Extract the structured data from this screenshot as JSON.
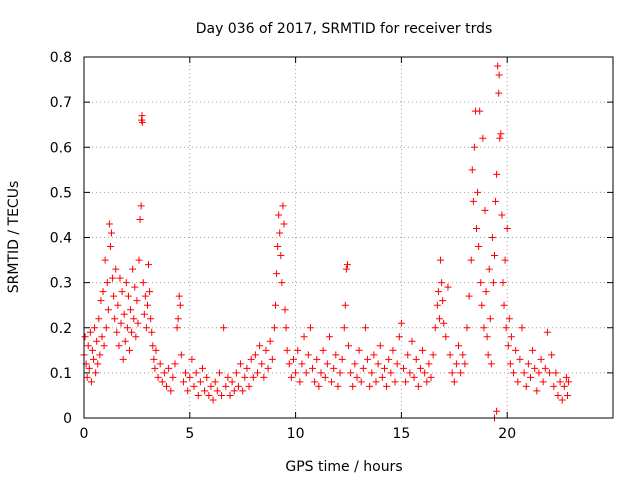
{
  "chart_data": {
    "type": "scatter",
    "title": "Day 036 of 2017, SRMTID for receiver trds",
    "xlabel": "GPS time / hours",
    "ylabel": "SRMTID / TECUs",
    "xlim": [
      0,
      25
    ],
    "ylim": [
      0,
      0.8
    ],
    "xticks": [
      0,
      5,
      10,
      15,
      20
    ],
    "xtick_labels": [
      "0",
      "5",
      "10",
      "15",
      "20"
    ],
    "yticks": [
      0,
      0.1,
      0.2,
      0.3,
      0.4,
      0.5,
      0.6,
      0.7,
      0.8
    ],
    "ytick_labels": [
      "0",
      "0.1",
      "0.2",
      "0.3",
      "0.4",
      "0.5",
      "0.6",
      "0.7",
      "0.8"
    ],
    "grid": true,
    "marker": "+",
    "color": "#ff0000",
    "x_extent_hours": [
      0,
      22.9
    ],
    "series": [
      {
        "name": "trds",
        "points": [
          [
            0.0,
            0.14
          ],
          [
            0.05,
            0.18
          ],
          [
            0.1,
            0.12
          ],
          [
            0.15,
            0.09
          ],
          [
            0.2,
            0.16
          ],
          [
            0.25,
            0.11
          ],
          [
            0.3,
            0.19
          ],
          [
            0.35,
            0.08
          ],
          [
            0.4,
            0.15
          ],
          [
            0.45,
            0.13
          ],
          [
            0.5,
            0.2
          ],
          [
            0.55,
            0.1
          ],
          [
            0.6,
            0.17
          ],
          [
            0.65,
            0.12
          ],
          [
            0.7,
            0.22
          ],
          [
            0.75,
            0.14
          ],
          [
            0.8,
            0.26
          ],
          [
            0.85,
            0.18
          ],
          [
            0.9,
            0.28
          ],
          [
            0.95,
            0.16
          ],
          [
            1.0,
            0.35
          ],
          [
            1.05,
            0.2
          ],
          [
            1.1,
            0.3
          ],
          [
            1.15,
            0.24
          ],
          [
            1.2,
            0.43
          ],
          [
            1.25,
            0.38
          ],
          [
            1.3,
            0.41
          ],
          [
            1.35,
            0.31
          ],
          [
            1.4,
            0.27
          ],
          [
            1.45,
            0.22
          ],
          [
            1.5,
            0.33
          ],
          [
            1.55,
            0.19
          ],
          [
            1.6,
            0.25
          ],
          [
            1.65,
            0.16
          ],
          [
            1.7,
            0.31
          ],
          [
            1.75,
            0.21
          ],
          [
            1.8,
            0.28
          ],
          [
            1.85,
            0.13
          ],
          [
            1.9,
            0.23
          ],
          [
            1.95,
            0.17
          ],
          [
            2.0,
            0.3
          ],
          [
            2.05,
            0.2
          ],
          [
            2.1,
            0.27
          ],
          [
            2.15,
            0.15
          ],
          [
            2.2,
            0.24
          ],
          [
            2.25,
            0.19
          ],
          [
            2.3,
            0.33
          ],
          [
            2.35,
            0.22
          ],
          [
            2.4,
            0.29
          ],
          [
            2.45,
            0.18
          ],
          [
            2.5,
            0.26
          ],
          [
            2.55,
            0.21
          ],
          [
            2.6,
            0.35
          ],
          [
            2.65,
            0.44
          ],
          [
            2.7,
            0.47
          ],
          [
            2.72,
            0.66
          ],
          [
            2.74,
            0.67
          ],
          [
            2.76,
            0.655
          ],
          [
            2.8,
            0.3
          ],
          [
            2.85,
            0.23
          ],
          [
            2.9,
            0.27
          ],
          [
            2.95,
            0.2
          ],
          [
            3.0,
            0.25
          ],
          [
            3.05,
            0.34
          ],
          [
            3.1,
            0.28
          ],
          [
            3.15,
            0.22
          ],
          [
            3.2,
            0.19
          ],
          [
            3.25,
            0.16
          ],
          [
            3.3,
            0.13
          ],
          [
            3.35,
            0.11
          ],
          [
            3.4,
            0.15
          ],
          [
            3.5,
            0.09
          ],
          [
            3.6,
            0.12
          ],
          [
            3.7,
            0.08
          ],
          [
            3.8,
            0.1
          ],
          [
            3.9,
            0.07
          ],
          [
            4.0,
            0.11
          ],
          [
            4.1,
            0.06
          ],
          [
            4.2,
            0.09
          ],
          [
            4.3,
            0.12
          ],
          [
            4.4,
            0.2
          ],
          [
            4.45,
            0.22
          ],
          [
            4.5,
            0.27
          ],
          [
            4.55,
            0.25
          ],
          [
            4.6,
            0.14
          ],
          [
            4.7,
            0.08
          ],
          [
            4.8,
            0.1
          ],
          [
            4.9,
            0.06
          ],
          [
            5.0,
            0.09
          ],
          [
            5.1,
            0.13
          ],
          [
            5.2,
            0.07
          ],
          [
            5.3,
            0.1
          ],
          [
            5.4,
            0.05
          ],
          [
            5.5,
            0.08
          ],
          [
            5.6,
            0.11
          ],
          [
            5.7,
            0.06
          ],
          [
            5.8,
            0.09
          ],
          [
            5.9,
            0.05
          ],
          [
            6.0,
            0.07
          ],
          [
            6.1,
            0.04
          ],
          [
            6.2,
            0.08
          ],
          [
            6.3,
            0.06
          ],
          [
            6.4,
            0.1
          ],
          [
            6.5,
            0.05
          ],
          [
            6.6,
            0.2
          ],
          [
            6.7,
            0.07
          ],
          [
            6.8,
            0.09
          ],
          [
            6.9,
            0.05
          ],
          [
            7.0,
            0.08
          ],
          [
            7.1,
            0.06
          ],
          [
            7.2,
            0.1
          ],
          [
            7.3,
            0.07
          ],
          [
            7.4,
            0.12
          ],
          [
            7.5,
            0.06
          ],
          [
            7.6,
            0.09
          ],
          [
            7.7,
            0.11
          ],
          [
            7.8,
            0.07
          ],
          [
            7.9,
            0.13
          ],
          [
            8.0,
            0.09
          ],
          [
            8.1,
            0.14
          ],
          [
            8.2,
            0.1
          ],
          [
            8.3,
            0.16
          ],
          [
            8.4,
            0.12
          ],
          [
            8.5,
            0.09
          ],
          [
            8.6,
            0.15
          ],
          [
            8.7,
            0.11
          ],
          [
            8.8,
            0.17
          ],
          [
            8.9,
            0.13
          ],
          [
            9.0,
            0.2
          ],
          [
            9.05,
            0.25
          ],
          [
            9.1,
            0.32
          ],
          [
            9.15,
            0.38
          ],
          [
            9.2,
            0.45
          ],
          [
            9.25,
            0.41
          ],
          [
            9.3,
            0.36
          ],
          [
            9.35,
            0.3
          ],
          [
            9.4,
            0.47
          ],
          [
            9.45,
            0.43
          ],
          [
            9.5,
            0.24
          ],
          [
            9.55,
            0.2
          ],
          [
            9.6,
            0.15
          ],
          [
            9.7,
            0.12
          ],
          [
            9.8,
            0.09
          ],
          [
            9.9,
            0.13
          ],
          [
            10.0,
            0.1
          ],
          [
            10.1,
            0.15
          ],
          [
            10.2,
            0.08
          ],
          [
            10.3,
            0.12
          ],
          [
            10.4,
            0.18
          ],
          [
            10.5,
            0.1
          ],
          [
            10.6,
            0.14
          ],
          [
            10.7,
            0.2
          ],
          [
            10.8,
            0.11
          ],
          [
            10.9,
            0.08
          ],
          [
            11.0,
            0.13
          ],
          [
            11.1,
            0.07
          ],
          [
            11.2,
            0.1
          ],
          [
            11.3,
            0.15
          ],
          [
            11.4,
            0.09
          ],
          [
            11.5,
            0.12
          ],
          [
            11.6,
            0.18
          ],
          [
            11.7,
            0.08
          ],
          [
            11.8,
            0.11
          ],
          [
            11.9,
            0.14
          ],
          [
            12.0,
            0.07
          ],
          [
            12.1,
            0.1
          ],
          [
            12.2,
            0.13
          ],
          [
            12.3,
            0.2
          ],
          [
            12.35,
            0.25
          ],
          [
            12.4,
            0.33
          ],
          [
            12.45,
            0.34
          ],
          [
            12.5,
            0.16
          ],
          [
            12.6,
            0.1
          ],
          [
            12.7,
            0.07
          ],
          [
            12.8,
            0.12
          ],
          [
            12.9,
            0.09
          ],
          [
            13.0,
            0.15
          ],
          [
            13.1,
            0.08
          ],
          [
            13.2,
            0.11
          ],
          [
            13.3,
            0.2
          ],
          [
            13.4,
            0.13
          ],
          [
            13.5,
            0.07
          ],
          [
            13.6,
            0.1
          ],
          [
            13.7,
            0.14
          ],
          [
            13.8,
            0.08
          ],
          [
            13.9,
            0.12
          ],
          [
            14.0,
            0.16
          ],
          [
            14.1,
            0.09
          ],
          [
            14.2,
            0.11
          ],
          [
            14.3,
            0.07
          ],
          [
            14.4,
            0.13
          ],
          [
            14.5,
            0.1
          ],
          [
            14.6,
            0.15
          ],
          [
            14.7,
            0.08
          ],
          [
            14.8,
            0.12
          ],
          [
            14.9,
            0.18
          ],
          [
            15.0,
            0.21
          ],
          [
            15.1,
            0.11
          ],
          [
            15.2,
            0.08
          ],
          [
            15.3,
            0.14
          ],
          [
            15.4,
            0.1
          ],
          [
            15.5,
            0.17
          ],
          [
            15.6,
            0.09
          ],
          [
            15.7,
            0.13
          ],
          [
            15.8,
            0.07
          ],
          [
            15.9,
            0.11
          ],
          [
            16.0,
            0.15
          ],
          [
            16.1,
            0.1
          ],
          [
            16.2,
            0.08
          ],
          [
            16.3,
            0.12
          ],
          [
            16.4,
            0.09
          ],
          [
            16.5,
            0.14
          ],
          [
            16.6,
            0.2
          ],
          [
            16.7,
            0.25
          ],
          [
            16.75,
            0.28
          ],
          [
            16.8,
            0.22
          ],
          [
            16.85,
            0.35
          ],
          [
            16.9,
            0.3
          ],
          [
            16.95,
            0.26
          ],
          [
            17.0,
            0.21
          ],
          [
            17.1,
            0.18
          ],
          [
            17.2,
            0.29
          ],
          [
            17.3,
            0.14
          ],
          [
            17.4,
            0.1
          ],
          [
            17.5,
            0.08
          ],
          [
            17.6,
            0.12
          ],
          [
            17.7,
            0.16
          ],
          [
            17.8,
            0.1
          ],
          [
            17.9,
            0.14
          ],
          [
            18.0,
            0.12
          ],
          [
            18.1,
            0.2
          ],
          [
            18.2,
            0.27
          ],
          [
            18.3,
            0.35
          ],
          [
            18.35,
            0.55
          ],
          [
            18.4,
            0.48
          ],
          [
            18.45,
            0.6
          ],
          [
            18.5,
            0.68
          ],
          [
            18.55,
            0.42
          ],
          [
            18.6,
            0.5
          ],
          [
            18.65,
            0.38
          ],
          [
            18.7,
            0.68
          ],
          [
            18.75,
            0.3
          ],
          [
            18.8,
            0.25
          ],
          [
            18.85,
            0.62
          ],
          [
            18.9,
            0.2
          ],
          [
            18.95,
            0.46
          ],
          [
            19.0,
            0.28
          ],
          [
            19.05,
            0.18
          ],
          [
            19.1,
            0.14
          ],
          [
            19.15,
            0.33
          ],
          [
            19.2,
            0.22
          ],
          [
            19.25,
            0.12
          ],
          [
            19.3,
            0.4
          ],
          [
            19.35,
            0.3
          ],
          [
            19.4,
            0.36
          ],
          [
            19.45,
            0.48
          ],
          [
            19.5,
            0.54
          ],
          [
            19.55,
            0.78
          ],
          [
            19.6,
            0.72
          ],
          [
            19.62,
            0.76
          ],
          [
            19.65,
            0.62
          ],
          [
            19.7,
            0.63
          ],
          [
            19.75,
            0.45
          ],
          [
            19.8,
            0.3
          ],
          [
            19.85,
            0.25
          ],
          [
            19.9,
            0.35
          ],
          [
            19.95,
            0.2
          ],
          [
            20.0,
            0.42
          ],
          [
            20.05,
            0.16
          ],
          [
            20.1,
            0.22
          ],
          [
            20.15,
            0.12
          ],
          [
            20.2,
            0.18
          ],
          [
            20.3,
            0.1
          ],
          [
            20.4,
            0.15
          ],
          [
            20.5,
            0.08
          ],
          [
            20.6,
            0.13
          ],
          [
            20.7,
            0.2
          ],
          [
            20.8,
            0.1
          ],
          [
            20.9,
            0.07
          ],
          [
            21.0,
            0.12
          ],
          [
            21.1,
            0.09
          ],
          [
            21.2,
            0.15
          ],
          [
            21.3,
            0.11
          ],
          [
            21.4,
            0.06
          ],
          [
            21.5,
            0.1
          ],
          [
            21.6,
            0.13
          ],
          [
            21.7,
            0.08
          ],
          [
            21.8,
            0.11
          ],
          [
            21.9,
            0.19
          ],
          [
            22.0,
            0.1
          ],
          [
            22.1,
            0.14
          ],
          [
            22.2,
            0.07
          ],
          [
            22.3,
            0.1
          ],
          [
            22.4,
            0.05
          ],
          [
            22.5,
            0.08
          ],
          [
            22.6,
            0.04
          ],
          [
            22.7,
            0.07
          ],
          [
            22.8,
            0.09
          ],
          [
            22.85,
            0.05
          ],
          [
            22.9,
            0.08
          ],
          [
            19.4,
            0.0
          ],
          [
            19.5,
            0.015
          ]
        ]
      }
    ]
  }
}
